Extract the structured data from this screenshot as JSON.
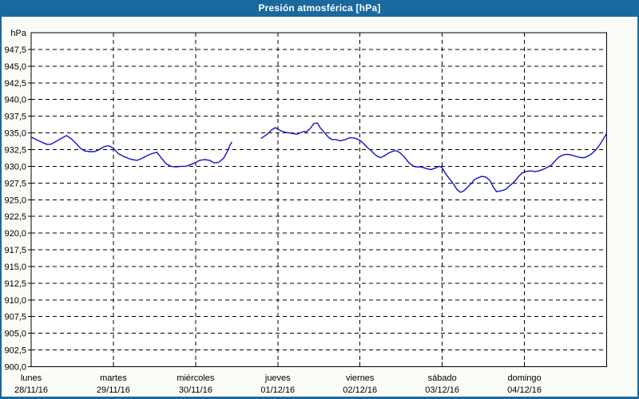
{
  "window": {
    "title": "Presión atmosférica [hPa]"
  },
  "colors": {
    "frame": "#19699e",
    "titlebar": "#19699e",
    "title_text": "#ffffff",
    "panel_bg": "#fafcf8",
    "plot_bg": "#ffffff",
    "grid": "#000000",
    "axis": "#000000",
    "line": "#1212c4"
  },
  "chart_data": {
    "type": "line",
    "title": "Presión atmosférica [hPa]",
    "legend": "none",
    "grid": {
      "horizontal": "dashed",
      "vertical": "dashed"
    },
    "y_axis": {
      "unit_label": "hPa",
      "min": 900,
      "max": 950,
      "tick_step": 2.5,
      "tick_labels": [
        {
          "value": 947.5,
          "label": "947,5"
        },
        {
          "value": 945.0,
          "label": "945,0"
        },
        {
          "value": 942.5,
          "label": "942,5"
        },
        {
          "value": 940.0,
          "label": "940,0"
        },
        {
          "value": 937.5,
          "label": "937,5"
        },
        {
          "value": 935.0,
          "label": "935,0"
        },
        {
          "value": 932.5,
          "label": "932,5"
        },
        {
          "value": 930.0,
          "label": "930,0"
        },
        {
          "value": 927.5,
          "label": "927,5"
        },
        {
          "value": 925.0,
          "label": "925,0"
        },
        {
          "value": 922.5,
          "label": "922,5"
        },
        {
          "value": 920.0,
          "label": "920,0"
        },
        {
          "value": 917.5,
          "label": "917,5"
        },
        {
          "value": 915.0,
          "label": "915,0"
        },
        {
          "value": 912.5,
          "label": "912,5"
        },
        {
          "value": 910.0,
          "label": "910,0"
        },
        {
          "value": 907.5,
          "label": "907,5"
        },
        {
          "value": 905.0,
          "label": "905,0"
        },
        {
          "value": 902.5,
          "label": "902,5"
        },
        {
          "value": 900.0,
          "label": "900,0"
        }
      ]
    },
    "x_axis": {
      "min_day": 0,
      "max_day": 7,
      "days": [
        {
          "name": "lunes",
          "date": "28/11/16"
        },
        {
          "name": "martes",
          "date": "29/11/16"
        },
        {
          "name": "miércoles",
          "date": "30/11/16"
        },
        {
          "name": "jueves",
          "date": "01/12/16"
        },
        {
          "name": "viernes",
          "date": "02/12/16"
        },
        {
          "name": "sábado",
          "date": "03/12/16"
        },
        {
          "name": "domingo",
          "date": "04/12/16"
        }
      ]
    },
    "series": [
      {
        "name": "Presión atmosférica",
        "unit": "hPa",
        "color": "#1212c4",
        "segments": [
          [
            [
              0.0,
              934.4
            ],
            [
              0.06,
              934.0
            ],
            [
              0.13,
              933.6
            ],
            [
              0.19,
              933.3
            ],
            [
              0.24,
              933.3
            ],
            [
              0.3,
              933.7
            ],
            [
              0.37,
              934.2
            ],
            [
              0.43,
              934.6
            ],
            [
              0.49,
              934.1
            ],
            [
              0.54,
              933.5
            ],
            [
              0.6,
              932.7
            ],
            [
              0.65,
              932.3
            ],
            [
              0.71,
              932.2
            ],
            [
              0.77,
              932.2
            ],
            [
              0.83,
              932.5
            ],
            [
              0.88,
              932.9
            ],
            [
              0.94,
              933.1
            ],
            [
              1.0,
              932.7
            ],
            [
              1.06,
              931.9
            ],
            [
              1.12,
              931.5
            ],
            [
              1.18,
              931.2
            ],
            [
              1.23,
              931.0
            ],
            [
              1.29,
              930.9
            ],
            [
              1.35,
              931.2
            ],
            [
              1.41,
              931.6
            ],
            [
              1.47,
              931.9
            ],
            [
              1.53,
              932.1
            ],
            [
              1.58,
              931.3
            ],
            [
              1.64,
              930.4
            ],
            [
              1.7,
              930.0
            ],
            [
              1.76,
              929.9
            ],
            [
              1.82,
              930.0
            ],
            [
              1.88,
              930.0
            ],
            [
              1.93,
              930.2
            ],
            [
              1.99,
              930.5
            ],
            [
              2.05,
              930.9
            ],
            [
              2.11,
              931.0
            ],
            [
              2.17,
              930.9
            ],
            [
              2.23,
              930.5
            ],
            [
              2.28,
              930.6
            ],
            [
              2.34,
              931.2
            ],
            [
              2.39,
              932.3
            ],
            [
              2.42,
              933.2
            ],
            [
              2.44,
              933.6
            ]
          ],
          [
            [
              2.8,
              934.2
            ],
            [
              2.86,
              934.7
            ],
            [
              2.92,
              935.4
            ],
            [
              2.97,
              935.8
            ],
            [
              3.01,
              935.5
            ],
            [
              3.04,
              935.3
            ],
            [
              3.09,
              935.1
            ],
            [
              3.14,
              935.0
            ],
            [
              3.19,
              934.9
            ],
            [
              3.23,
              934.8
            ],
            [
              3.27,
              935.0
            ],
            [
              3.31,
              935.2
            ],
            [
              3.35,
              935.2
            ],
            [
              3.39,
              935.6
            ],
            [
              3.44,
              936.4
            ],
            [
              3.48,
              936.5
            ],
            [
              3.52,
              935.7
            ],
            [
              3.57,
              935.0
            ],
            [
              3.62,
              934.3
            ],
            [
              3.66,
              934.0
            ],
            [
              3.71,
              934.0
            ],
            [
              3.76,
              933.8
            ],
            [
              3.82,
              934.0
            ],
            [
              3.88,
              934.3
            ],
            [
              3.94,
              934.2
            ],
            [
              3.98,
              934.0
            ],
            [
              4.01,
              933.8
            ],
            [
              4.05,
              933.3
            ],
            [
              4.09,
              932.8
            ],
            [
              4.13,
              932.4
            ],
            [
              4.17,
              931.9
            ],
            [
              4.21,
              931.5
            ],
            [
              4.25,
              931.3
            ],
            [
              4.3,
              931.6
            ],
            [
              4.35,
              932.0
            ],
            [
              4.41,
              932.3
            ],
            [
              4.45,
              932.3
            ],
            [
              4.49,
              932.0
            ],
            [
              4.54,
              931.4
            ],
            [
              4.59,
              930.6
            ],
            [
              4.64,
              930.1
            ],
            [
              4.68,
              929.9
            ],
            [
              4.74,
              929.9
            ],
            [
              4.8,
              929.7
            ],
            [
              4.86,
              929.5
            ],
            [
              4.91,
              929.7
            ],
            [
              4.96,
              930.0
            ],
            [
              5.0,
              929.8
            ],
            [
              5.04,
              928.9
            ],
            [
              5.09,
              928.1
            ],
            [
              5.14,
              927.3
            ],
            [
              5.18,
              926.5
            ],
            [
              5.22,
              926.1
            ],
            [
              5.26,
              926.3
            ],
            [
              5.31,
              926.9
            ],
            [
              5.36,
              927.5
            ],
            [
              5.39,
              928.0
            ],
            [
              5.44,
              928.3
            ],
            [
              5.48,
              928.5
            ],
            [
              5.53,
              928.4
            ],
            [
              5.58,
              927.9
            ],
            [
              5.62,
              926.9
            ],
            [
              5.66,
              926.2
            ],
            [
              5.7,
              926.3
            ],
            [
              5.74,
              926.4
            ],
            [
              5.78,
              926.6
            ],
            [
              5.82,
              927.1
            ],
            [
              5.86,
              927.5
            ],
            [
              5.9,
              928.0
            ],
            [
              5.93,
              928.5
            ],
            [
              5.97,
              929.0
            ],
            [
              6.01,
              929.2
            ],
            [
              6.05,
              929.3
            ],
            [
              6.09,
              929.3
            ],
            [
              6.13,
              929.2
            ],
            [
              6.17,
              929.3
            ],
            [
              6.22,
              929.5
            ],
            [
              6.27,
              929.8
            ],
            [
              6.33,
              930.2
            ],
            [
              6.38,
              930.9
            ],
            [
              6.42,
              931.4
            ],
            [
              6.47,
              931.7
            ],
            [
              6.52,
              931.8
            ],
            [
              6.57,
              931.7
            ],
            [
              6.62,
              931.5
            ],
            [
              6.68,
              931.3
            ],
            [
              6.73,
              931.3
            ],
            [
              6.77,
              931.5
            ],
            [
              6.82,
              931.9
            ],
            [
              6.87,
              932.5
            ],
            [
              6.92,
              933.3
            ],
            [
              6.96,
              934.1
            ],
            [
              6.99,
              934.7
            ],
            [
              7.0,
              935.0
            ]
          ]
        ]
      }
    ]
  }
}
